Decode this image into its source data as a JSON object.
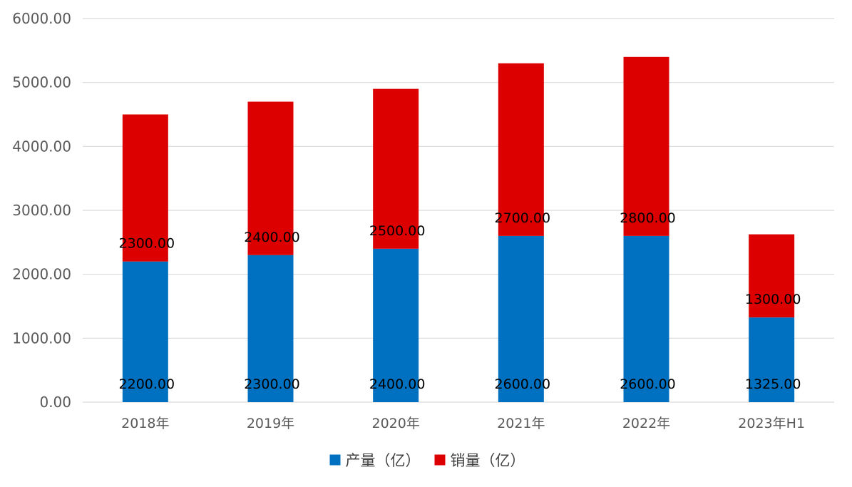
{
  "chart_data": {
    "type": "bar",
    "stacked": true,
    "categories": [
      "2018年",
      "2019年",
      "2020年",
      "2021年",
      "2022年",
      "2023年H1"
    ],
    "series": [
      {
        "name": "产量（亿）",
        "color": "#0070C0",
        "values": [
          2200,
          2300,
          2400,
          2600,
          2600,
          1325
        ],
        "labels": [
          "2200.00",
          "2300.00",
          "2400.00",
          "2600.00",
          "2600.00",
          "1325.00"
        ]
      },
      {
        "name": "销量（亿）",
        "color": "#DD0000",
        "values": [
          2300,
          2400,
          2500,
          2700,
          2800,
          1300
        ],
        "labels": [
          "2300.00",
          "2400.00",
          "2500.00",
          "2700.00",
          "2800.00",
          "1300.00"
        ]
      }
    ],
    "ylim": [
      0,
      6000
    ],
    "yticks": [
      0,
      1000,
      2000,
      3000,
      4000,
      5000,
      6000
    ],
    "ytick_labels": [
      "0.00",
      "1000.00",
      "2000.00",
      "3000.00",
      "4000.00",
      "5000.00",
      "6000.00"
    ],
    "grid": true,
    "legend_position": "bottom",
    "title": "",
    "xlabel": "",
    "ylabel": "",
    "gridline_color": "#D9D9D9"
  }
}
